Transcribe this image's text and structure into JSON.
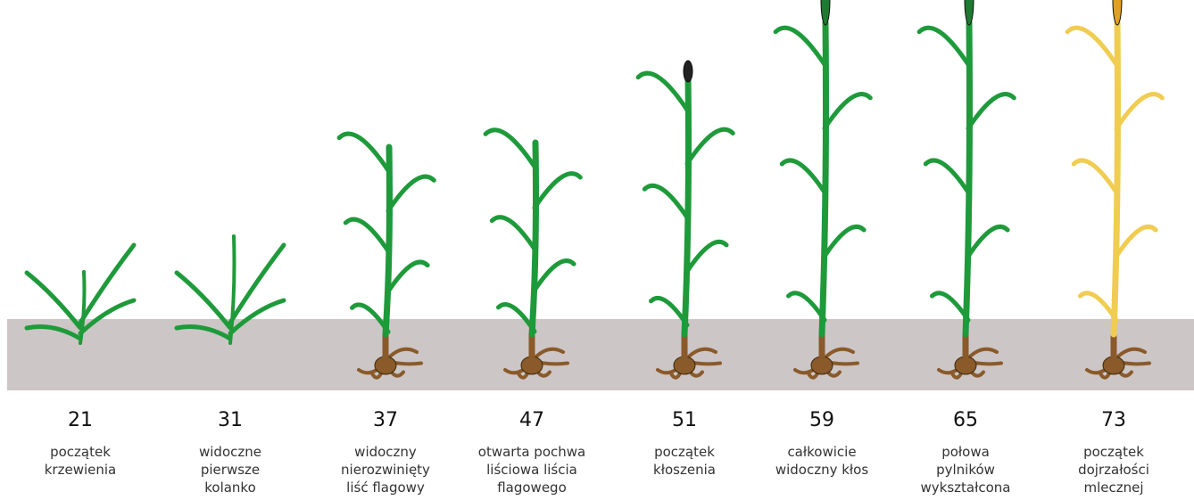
{
  "stages": [
    {
      "code": "21",
      "label": [
        "początek",
        "krzewienia"
      ]
    },
    {
      "code": "31",
      "label": [
        "widoczne",
        "pierwsze",
        "kolanko"
      ]
    },
    {
      "code": "37",
      "label": [
        "widoczny",
        "nierozwinięty",
        "liść flagowy"
      ]
    },
    {
      "code": "47",
      "label": [
        "otwarta pochwa",
        "liściowa liścia",
        "flagowego"
      ]
    },
    {
      "code": "51",
      "label": [
        "początek",
        "kłoszenia"
      ]
    },
    {
      "code": "59",
      "label": [
        "całkowicie",
        "widoczny kłos"
      ]
    },
    {
      "code": "65",
      "label": [
        "połowa",
        "pylników",
        "wykształcona"
      ]
    },
    {
      "code": "73",
      "label": [
        "początek",
        "dojrzałości",
        "mlecznej"
      ]
    }
  ]
}
